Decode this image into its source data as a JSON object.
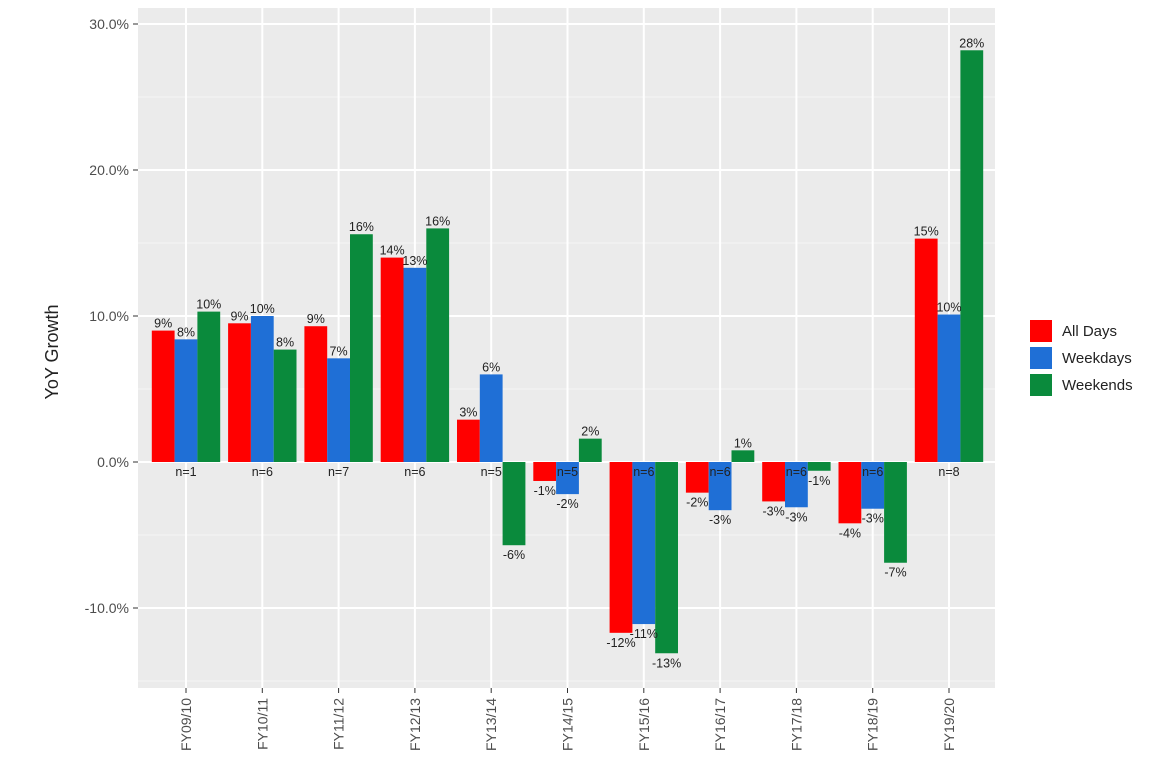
{
  "chart_data": {
    "type": "bar",
    "ylabel": "YoY Growth",
    "xlabel": "",
    "categories": [
      "FY09/10",
      "FY10/11",
      "FY11/12",
      "FY12/13",
      "FY13/14",
      "FY14/15",
      "FY15/16",
      "FY16/17",
      "FY17/18",
      "FY18/19",
      "FY19/20"
    ],
    "ylim": [
      -15.5,
      30.0
    ],
    "yticks": [
      -10,
      0,
      10,
      20,
      30
    ],
    "ytick_labels": [
      "-10.0%",
      "0.0%",
      "10.0%",
      "20.0%",
      "30.0%"
    ],
    "grid": true,
    "legend_position": "right",
    "series": [
      {
        "name": "All Days",
        "color": "#ff0000",
        "values": [
          9.0,
          9.5,
          9.3,
          14.0,
          2.9,
          -1.3,
          -11.7,
          -2.1,
          -2.7,
          -4.2,
          15.3
        ],
        "labels": [
          "9%",
          "9%",
          "9%",
          "14%",
          "3%",
          "-1%",
          "-12%",
          "-2%",
          "-3%",
          "-4%",
          "15%"
        ]
      },
      {
        "name": "Weekdays",
        "color": "#1f6fd6",
        "values": [
          8.4,
          10.0,
          7.1,
          13.3,
          6.0,
          -2.2,
          -11.1,
          -3.3,
          -3.1,
          -3.2,
          10.1
        ],
        "labels": [
          "8%",
          "10%",
          "7%",
          "13%",
          "6%",
          "-2%",
          "-11%",
          "-3%",
          "-3%",
          "-3%",
          "10%"
        ]
      },
      {
        "name": "Weekends",
        "color": "#0a8a3c",
        "values": [
          10.3,
          7.7,
          15.6,
          16.0,
          -5.7,
          1.6,
          -13.1,
          0.8,
          -0.6,
          -6.9,
          28.2
        ],
        "labels": [
          "10%",
          "8%",
          "16%",
          "16%",
          "-6%",
          "2%",
          "-13%",
          "1%",
          "-1%",
          "-7%",
          "28%"
        ]
      }
    ],
    "n_labels": [
      "n=1",
      "n=6",
      "n=7",
      "n=6",
      "n=5",
      "n=5",
      "n=6",
      "n=6",
      "n=6",
      "n=6",
      "n=8"
    ]
  }
}
